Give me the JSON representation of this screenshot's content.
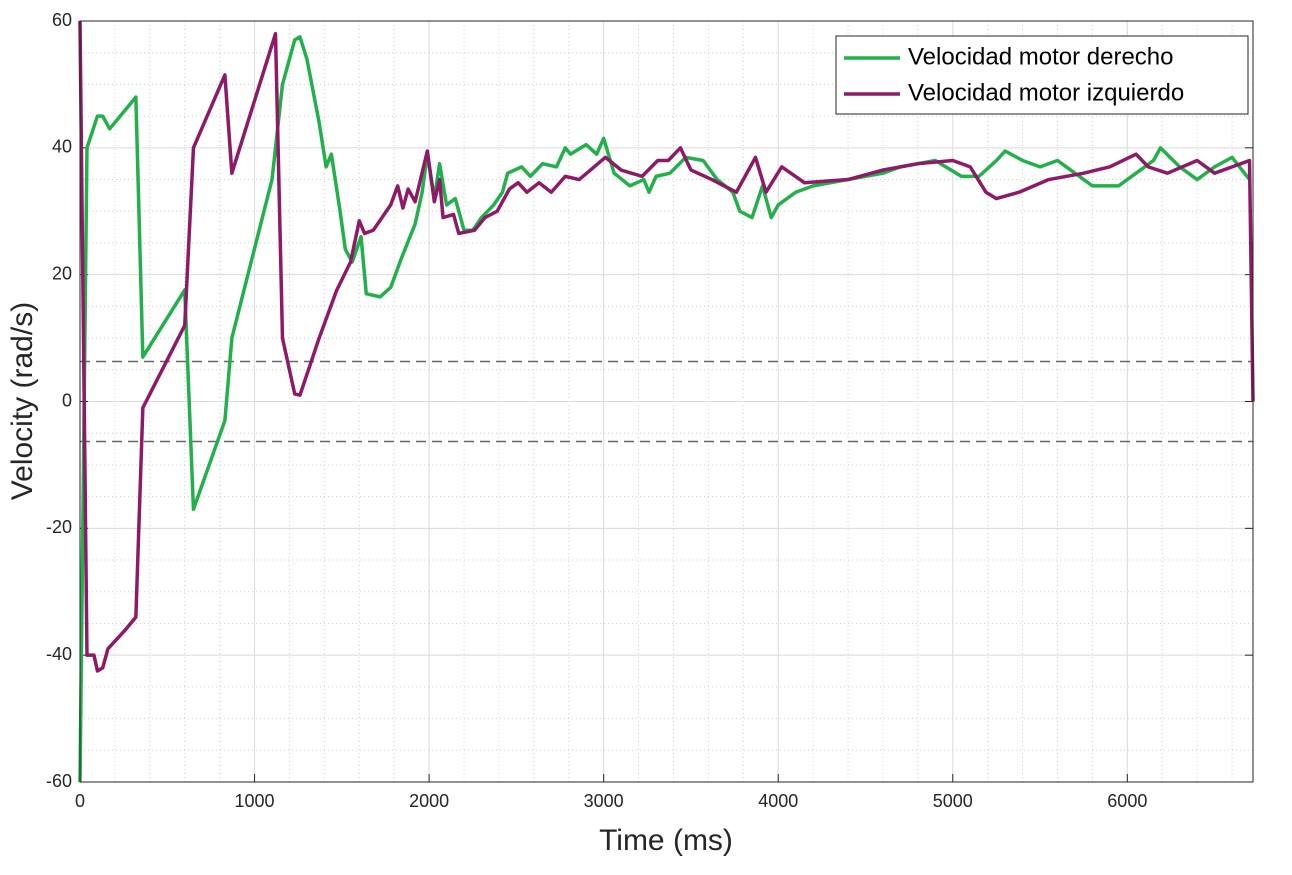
{
  "chart_data": {
    "type": "line",
    "xlabel": "Time (ms)",
    "ylabel": "Velocity (rad/s)",
    "xlim": [
      0,
      6720
    ],
    "ylim": [
      -60,
      60
    ],
    "xticks": [
      0,
      1000,
      2000,
      3000,
      4000,
      5000,
      6000
    ],
    "yticks": [
      -60,
      -40,
      -20,
      0,
      20,
      40,
      60
    ],
    "grid": true,
    "minor_grid": true,
    "legend": "upper right",
    "hlines": [
      6.3,
      -6.3
    ],
    "series": [
      {
        "name": "Velocidad motor derecho",
        "color": "#22b04b",
        "x": [
          0,
          40,
          100,
          130,
          170,
          320,
          360,
          600,
          650,
          830,
          870,
          1100,
          1160,
          1230,
          1260,
          1300,
          1370,
          1410,
          1440,
          1490,
          1520,
          1560,
          1610,
          1640,
          1720,
          1780,
          1840,
          1920,
          1960,
          1990,
          2030,
          2060,
          2100,
          2150,
          2200,
          2250,
          2300,
          2370,
          2420,
          2450,
          2530,
          2580,
          2650,
          2730,
          2780,
          2810,
          2900,
          2960,
          3000,
          3060,
          3150,
          3230,
          3260,
          3300,
          3380,
          3470,
          3570,
          3650,
          3740,
          3780,
          3850,
          3910,
          3960,
          4000,
          4100,
          4200,
          4400,
          4600,
          4700,
          4900,
          5050,
          5150,
          5250,
          5300,
          5400,
          5500,
          5600,
          5700,
          5800,
          5950,
          6050,
          6150,
          6190,
          6300,
          6400,
          6500,
          6600,
          6700
        ],
        "values": [
          -60,
          40,
          45,
          45,
          43,
          48,
          7,
          17.6,
          -17,
          -3,
          10,
          35,
          50,
          57,
          57.5,
          54,
          44,
          37,
          39,
          30,
          24,
          22,
          26,
          17,
          16.5,
          18,
          22.5,
          28,
          33,
          39,
          32,
          37.5,
          31,
          32,
          27,
          27,
          29,
          31,
          33,
          36,
          37,
          35.5,
          37.5,
          37,
          40,
          39,
          40.5,
          39,
          41.5,
          36,
          34,
          35,
          33,
          35.5,
          36,
          38.5,
          38,
          35,
          33,
          30,
          29,
          34,
          29,
          31,
          33,
          34,
          35,
          36,
          37,
          38,
          35.5,
          35.5,
          38,
          39.5,
          38,
          37,
          38,
          36,
          34,
          34,
          36,
          38,
          40,
          37,
          35,
          37,
          38.5,
          35
        ]
      },
      {
        "name": "Velocidad motor izquierdo",
        "color": "#8e1a67",
        "x": [
          0,
          40,
          80,
          100,
          130,
          160,
          260,
          320,
          360,
          600,
          650,
          830,
          870,
          1120,
          1160,
          1230,
          1260,
          1370,
          1470,
          1550,
          1600,
          1630,
          1680,
          1780,
          1820,
          1850,
          1880,
          1920,
          1990,
          2030,
          2060,
          2080,
          2140,
          2170,
          2260,
          2320,
          2390,
          2460,
          2510,
          2560,
          2630,
          2700,
          2780,
          2860,
          3010,
          3100,
          3220,
          3310,
          3370,
          3440,
          3500,
          3620,
          3760,
          3870,
          3930,
          4020,
          4150,
          4400,
          4600,
          4800,
          5000,
          5100,
          5190,
          5250,
          5380,
          5550,
          5750,
          5900,
          6050,
          6120,
          6230,
          6400,
          6500,
          6600,
          6700,
          6720
        ],
        "values": [
          60,
          -40,
          -40,
          -42.5,
          -42,
          -39,
          -36,
          -34,
          -1,
          12,
          40,
          51.5,
          36,
          58,
          10,
          1.2,
          1,
          10,
          17.5,
          22,
          28.5,
          26.5,
          27,
          31,
          34,
          30.5,
          33.5,
          31.5,
          39.5,
          31.5,
          35,
          29,
          29.5,
          26.5,
          27,
          29,
          30,
          33.5,
          34.5,
          33,
          34.5,
          33,
          35.5,
          35,
          38.5,
          36.5,
          35.5,
          38,
          38,
          40,
          36.5,
          35,
          33,
          38.5,
          33,
          37,
          34.5,
          35,
          36.5,
          37.5,
          38,
          37,
          33,
          32,
          33,
          35,
          36,
          37,
          39,
          37,
          36,
          38,
          36,
          37,
          38,
          0
        ]
      }
    ]
  }
}
